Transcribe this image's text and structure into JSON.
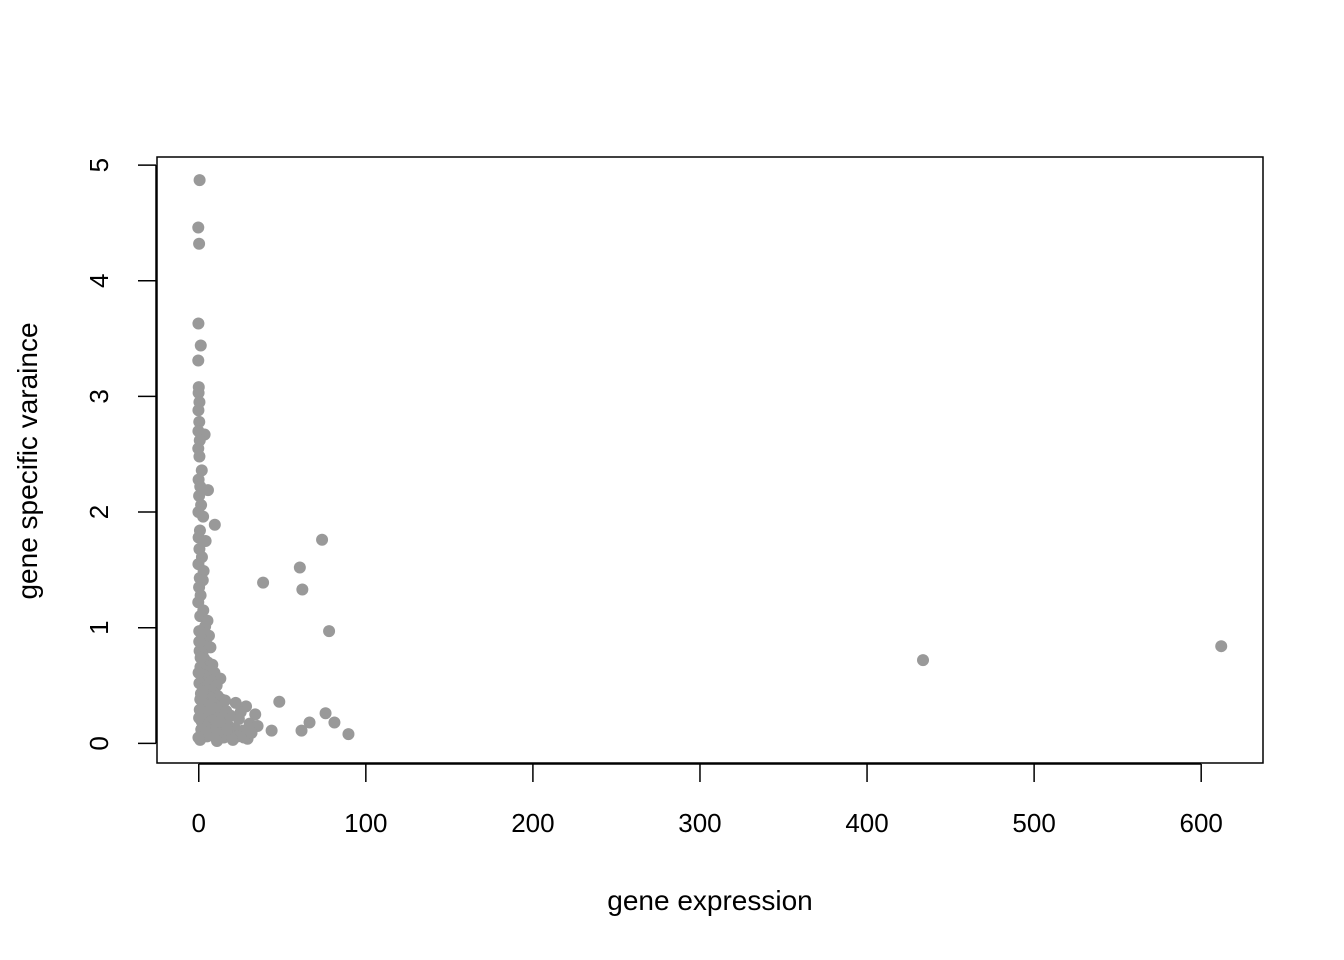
{
  "chart_data": {
    "type": "scatter",
    "title": "",
    "xlabel": "gene expression",
    "ylabel": "gene specific varaince",
    "xlim": [
      -25,
      637
    ],
    "ylim": [
      -0.17,
      5.07
    ],
    "x_ticks": [
      0,
      100,
      200,
      300,
      400,
      500,
      600
    ],
    "y_ticks": [
      0,
      1,
      2,
      3,
      4,
      5
    ],
    "grid": false,
    "point_color": "#999999",
    "points": [
      {
        "x": 0.5,
        "y": 4.87
      },
      {
        "x": -0.3,
        "y": 4.46
      },
      {
        "x": 0.2,
        "y": 4.32
      },
      {
        "x": -0.2,
        "y": 3.63
      },
      {
        "x": 1.2,
        "y": 3.44
      },
      {
        "x": -0.3,
        "y": 3.31
      },
      {
        "x": 0.0,
        "y": 3.08
      },
      {
        "x": -0.1,
        "y": 3.03
      },
      {
        "x": 0.4,
        "y": 2.95
      },
      {
        "x": -0.2,
        "y": 2.88
      },
      {
        "x": 0.3,
        "y": 2.78
      },
      {
        "x": -0.2,
        "y": 2.7
      },
      {
        "x": 3.5,
        "y": 2.67
      },
      {
        "x": 0.6,
        "y": 2.62
      },
      {
        "x": -0.3,
        "y": 2.55
      },
      {
        "x": 0.4,
        "y": 2.48
      },
      {
        "x": 1.8,
        "y": 2.36
      },
      {
        "x": -0.1,
        "y": 2.28
      },
      {
        "x": 0.9,
        "y": 2.22
      },
      {
        "x": 5.5,
        "y": 2.19
      },
      {
        "x": 0.2,
        "y": 2.14
      },
      {
        "x": 1.4,
        "y": 2.06
      },
      {
        "x": -0.2,
        "y": 2.0
      },
      {
        "x": 2.6,
        "y": 1.96
      },
      {
        "x": 9.6,
        "y": 1.89
      },
      {
        "x": 0.7,
        "y": 1.84
      },
      {
        "x": -0.1,
        "y": 1.78
      },
      {
        "x": 4.1,
        "y": 1.75
      },
      {
        "x": 0.4,
        "y": 1.68
      },
      {
        "x": 1.9,
        "y": 1.61
      },
      {
        "x": -0.2,
        "y": 1.55
      },
      {
        "x": 2.9,
        "y": 1.49
      },
      {
        "x": 0.6,
        "y": 1.43
      },
      {
        "x": 2.4,
        "y": 1.41
      },
      {
        "x": 0.2,
        "y": 1.35
      },
      {
        "x": 1.1,
        "y": 1.28
      },
      {
        "x": -0.3,
        "y": 1.22
      },
      {
        "x": 2.7,
        "y": 1.15
      },
      {
        "x": 0.9,
        "y": 1.1
      },
      {
        "x": 5.2,
        "y": 1.06
      },
      {
        "x": 3.8,
        "y": 1.01
      },
      {
        "x": 0.3,
        "y": 0.97
      },
      {
        "x": 6.1,
        "y": 0.93
      },
      {
        "x": 1.6,
        "y": 0.9
      },
      {
        "x": 4.6,
        "y": 0.86
      },
      {
        "x": 7.0,
        "y": 0.83
      },
      {
        "x": 0.5,
        "y": 0.8
      },
      {
        "x": 2.2,
        "y": 0.77
      },
      {
        "x": 3.3,
        "y": 0.73
      },
      {
        "x": 5.4,
        "y": 0.7
      },
      {
        "x": 8.1,
        "y": 0.68
      },
      {
        "x": 1.0,
        "y": 0.66
      },
      {
        "x": 6.8,
        "y": 0.63
      },
      {
        "x": 9.4,
        "y": 0.61
      },
      {
        "x": 2.8,
        "y": 0.59
      },
      {
        "x": 4.3,
        "y": 0.57
      },
      {
        "x": 12.9,
        "y": 0.56
      },
      {
        "x": 7.6,
        "y": 0.54
      },
      {
        "x": 0.4,
        "y": 0.52
      },
      {
        "x": 10.7,
        "y": 0.5
      },
      {
        "x": 3.7,
        "y": 0.48
      },
      {
        "x": 5.9,
        "y": 0.46
      },
      {
        "x": 8.8,
        "y": 0.44
      },
      {
        "x": 1.3,
        "y": 0.43
      },
      {
        "x": 11.3,
        "y": 0.41
      },
      {
        "x": 6.4,
        "y": 0.4
      },
      {
        "x": 13.6,
        "y": 0.38
      },
      {
        "x": 15.7,
        "y": 0.37
      },
      {
        "x": 2.5,
        "y": 0.36
      },
      {
        "x": 22.1,
        "y": 0.35
      },
      {
        "x": 9.0,
        "y": 0.34
      },
      {
        "x": 4.9,
        "y": 0.33
      },
      {
        "x": 28.3,
        "y": 0.32
      },
      {
        "x": 12.2,
        "y": 0.31
      },
      {
        "x": 7.2,
        "y": 0.3
      },
      {
        "x": 0.6,
        "y": 0.29
      },
      {
        "x": 16.4,
        "y": 0.28
      },
      {
        "x": 3.1,
        "y": 0.27
      },
      {
        "x": 10.1,
        "y": 0.26
      },
      {
        "x": 33.8,
        "y": 0.25
      },
      {
        "x": 19.0,
        "y": 0.24
      },
      {
        "x": 5.6,
        "y": 0.23
      },
      {
        "x": 14.5,
        "y": 0.22
      },
      {
        "x": 24.0,
        "y": 0.21
      },
      {
        "x": 8.3,
        "y": 0.2
      },
      {
        "x": 1.7,
        "y": 0.19
      },
      {
        "x": 11.8,
        "y": 0.18
      },
      {
        "x": 30.5,
        "y": 0.17
      },
      {
        "x": 17.3,
        "y": 0.16
      },
      {
        "x": 35.2,
        "y": 0.15
      },
      {
        "x": 4.4,
        "y": 0.14
      },
      {
        "x": 21.6,
        "y": 0.13
      },
      {
        "x": 9.7,
        "y": 0.12
      },
      {
        "x": 26.4,
        "y": 0.11
      },
      {
        "x": 13.1,
        "y": 0.1
      },
      {
        "x": 2.1,
        "y": 0.09
      },
      {
        "x": 18.6,
        "y": 0.08
      },
      {
        "x": 6.9,
        "y": 0.07
      },
      {
        "x": 23.3,
        "y": 0.06
      },
      {
        "x": 15.0,
        "y": 0.05
      },
      {
        "x": 29.2,
        "y": 0.04
      },
      {
        "x": 0.8,
        "y": 0.03
      },
      {
        "x": 10.9,
        "y": 0.02
      },
      {
        "x": 20.4,
        "y": 0.03
      },
      {
        "x": 27.0,
        "y": 0.05
      },
      {
        "x": 5.0,
        "y": 0.06
      },
      {
        "x": 31.6,
        "y": 0.09
      },
      {
        "x": 16.9,
        "y": 0.12
      },
      {
        "x": 3.6,
        "y": 0.15
      },
      {
        "x": 12.5,
        "y": 0.19
      },
      {
        "x": 25.1,
        "y": 0.27
      },
      {
        "x": 7.9,
        "y": 0.31
      },
      {
        "x": 0.2,
        "y": 0.22
      },
      {
        "x": 1.5,
        "y": 0.12
      },
      {
        "x": -0.2,
        "y": 0.05
      },
      {
        "x": 0.9,
        "y": 0.38
      },
      {
        "x": 2.3,
        "y": 0.45
      },
      {
        "x": -0.1,
        "y": 0.61
      },
      {
        "x": 1.1,
        "y": 0.74
      },
      {
        "x": 0.3,
        "y": 0.88
      },
      {
        "x": 38.5,
        "y": 1.39
      },
      {
        "x": 60.5,
        "y": 1.52
      },
      {
        "x": 62.0,
        "y": 1.33
      },
      {
        "x": 73.8,
        "y": 1.76
      },
      {
        "x": 78.0,
        "y": 0.97
      },
      {
        "x": 48.2,
        "y": 0.36
      },
      {
        "x": 43.6,
        "y": 0.11
      },
      {
        "x": 61.5,
        "y": 0.11
      },
      {
        "x": 66.3,
        "y": 0.18
      },
      {
        "x": 75.9,
        "y": 0.26
      },
      {
        "x": 81.2,
        "y": 0.18
      },
      {
        "x": 89.6,
        "y": 0.08
      },
      {
        "x": 433.5,
        "y": 0.72
      },
      {
        "x": 612.0,
        "y": 0.84
      }
    ]
  }
}
